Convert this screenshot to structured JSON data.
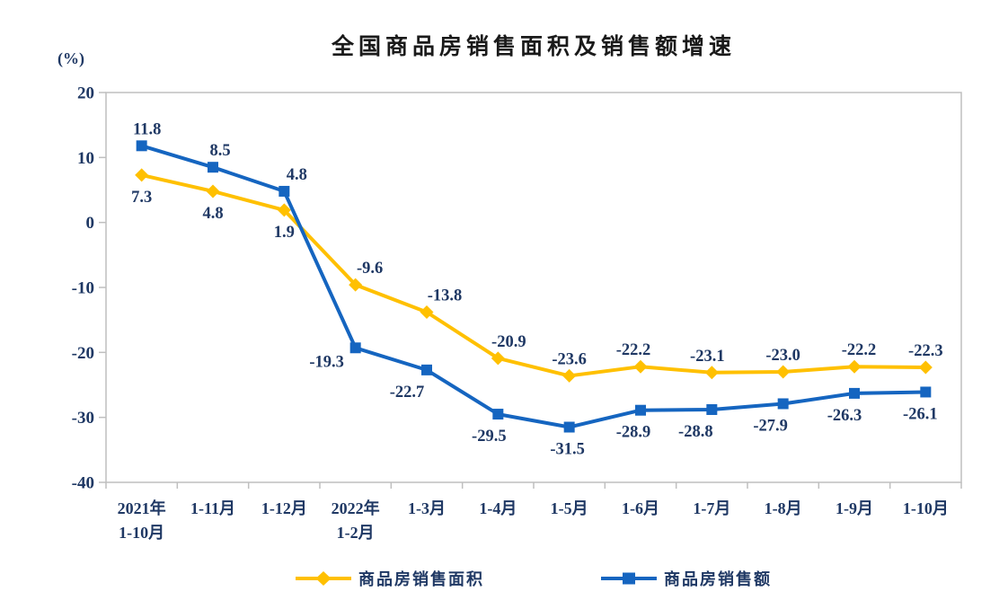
{
  "chart_data": {
    "type": "line",
    "title": "全国商品房销售面积及销售额增速",
    "unit_label": "(%)",
    "categories": [
      "2021年\n1-10月",
      "1-11月",
      "1-12月",
      "2022年\n1-2月",
      "1-3月",
      "1-4月",
      "1-5月",
      "1-6月",
      "1-7月",
      "1-8月",
      "1-9月",
      "1-10月"
    ],
    "ylim": [
      -40,
      20
    ],
    "yticks": [
      20,
      10,
      0,
      -10,
      -20,
      -30,
      -40
    ],
    "grid": false,
    "data_labels": true,
    "legend_position": "bottom",
    "background_color": "#FFFFFF",
    "title_color": "#1A1A1A",
    "text_color": "#1F3864",
    "axis_color": "#BFBFBF",
    "series": [
      {
        "name": "商品房销售面积",
        "color": "#FFC000",
        "marker": "diamond",
        "values": [
          7.3,
          4.8,
          1.9,
          -9.6,
          -13.8,
          -20.9,
          -23.6,
          -22.2,
          -23.1,
          -23.0,
          -22.2,
          -22.3
        ],
        "label_side": [
          "below",
          "below",
          "below",
          "above",
          "above",
          "above",
          "above",
          "above",
          "above",
          "above",
          "above",
          "above"
        ],
        "label_dx": [
          0,
          0,
          0,
          16,
          20,
          12,
          0,
          -8,
          -5,
          0,
          5,
          0
        ]
      },
      {
        "name": "商品房销售额",
        "color": "#1565C0",
        "marker": "square",
        "values": [
          11.8,
          8.5,
          4.8,
          -19.3,
          -22.7,
          -29.5,
          -31.5,
          -28.9,
          -28.8,
          -27.9,
          -26.3,
          -26.1
        ],
        "label_side": [
          "above",
          "above",
          "above",
          "below-left",
          "below",
          "below",
          "below",
          "below",
          "below",
          "below",
          "below",
          "below"
        ],
        "label_dx": [
          6,
          8,
          14,
          -32,
          -22,
          -10,
          -2,
          -8,
          -18,
          -14,
          -11,
          -6
        ]
      }
    ]
  }
}
